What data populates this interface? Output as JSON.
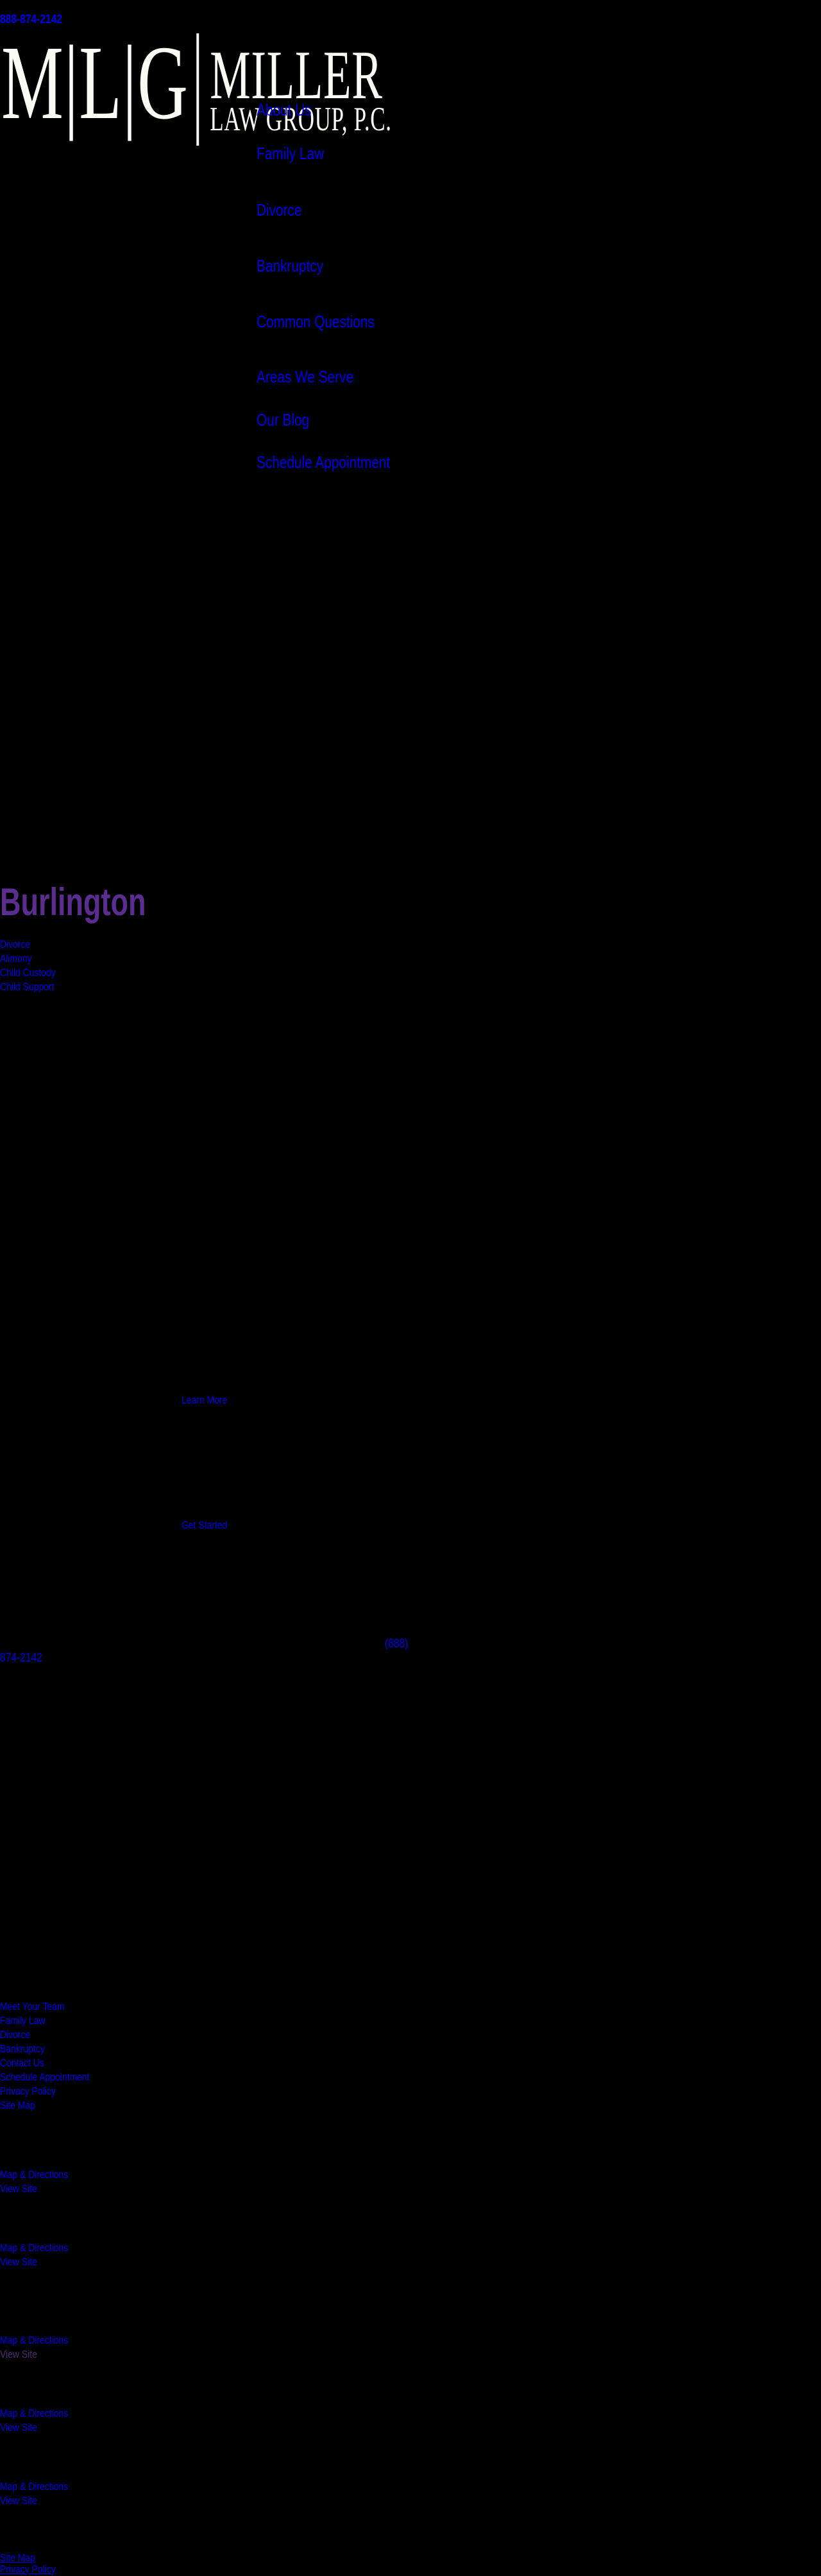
{
  "page": {
    "background_color": "#000000",
    "link_color": "#0000ee",
    "visited_link_color": "#4e2d73",
    "heading_color": "#5c2d91",
    "logo_color": "#fbfbf6"
  },
  "header": {
    "phone": "888-874-2142",
    "logo": {
      "monogram": "M|L|G",
      "name": "MILLER",
      "subtitle": "LAW GROUP, P.C."
    },
    "nav": {
      "items": [
        {
          "label": "About Us"
        },
        {
          "label": "Family Law"
        },
        {
          "label": "Divorce"
        },
        {
          "label": "Bankruptcy"
        },
        {
          "label": "Common Questions"
        },
        {
          "label": "Areas We Serve"
        },
        {
          "label": "Our Blog"
        },
        {
          "label": "Schedule Appointment"
        }
      ]
    }
  },
  "main": {
    "city_heading": "Burlington",
    "city_links": [
      "Divorce",
      "Alimony",
      "Child Custody",
      "Child Support"
    ],
    "learn_more_label": "Learn More",
    "get_started_label": "Get Started",
    "phone_link": {
      "full": "(888) 874-2142",
      "line1": "(888)",
      "line2": "874-2142"
    }
  },
  "footer": {
    "links": [
      "Meet Your Team",
      "Family Law",
      "Divorce",
      "Bankruptcy",
      "Contact Us",
      "Schedule Appointment",
      "Privacy Policy",
      "Site Map"
    ],
    "offices": [
      {
        "map_directions_label": "Map & Directions",
        "view_site_label": "View Site",
        "view_site_visited": false
      },
      {
        "map_directions_label": "Map & Directions",
        "view_site_label": "View Site",
        "view_site_visited": false
      },
      {
        "map_directions_label": "Map & Directions",
        "view_site_label": "View Site",
        "view_site_visited": true
      },
      {
        "map_directions_label": "Map & Directions",
        "view_site_label": "View Site",
        "view_site_visited": false
      },
      {
        "map_directions_label": "Map & Directions",
        "view_site_label": "View Site",
        "view_site_visited": false
      }
    ],
    "bottom_links": [
      "Site Map",
      "Privacy Policy"
    ]
  }
}
